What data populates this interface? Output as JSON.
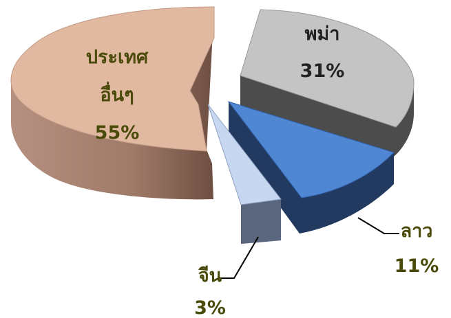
{
  "colors": {
    "label_dark": "#4a4a0a",
    "label_on_gray": "#222222",
    "leader": "#000000"
  },
  "chart_data": {
    "type": "pie",
    "style": "3d-exploded",
    "slices": [
      {
        "id": "other",
        "name_lines": [
          "ประเทศ",
          "อื่นๆ"
        ],
        "value": 55,
        "value_label": "55%",
        "top_color": "#e1b8a0",
        "side_color": "#9a7566",
        "edge_color": "#c29a86"
      },
      {
        "id": "myanmar",
        "name_lines": [
          "พม่า"
        ],
        "value": 31,
        "value_label": "31%",
        "top_color": "#c4c4c4",
        "side_color": "#4c4c4c",
        "edge_color": "#9a9a9a"
      },
      {
        "id": "laos",
        "name_lines": [
          "ลาว"
        ],
        "value": 11,
        "value_label": "11%",
        "top_color": "#4f87d2",
        "side_color": "#233a60",
        "edge_color": "#2f5ea8"
      },
      {
        "id": "china",
        "name_lines": [
          "จีน"
        ],
        "value": 3,
        "value_label": "3%",
        "top_color": "#c6d7ef",
        "side_color": "#55617a",
        "edge_color": "#8ea2c4"
      }
    ]
  }
}
